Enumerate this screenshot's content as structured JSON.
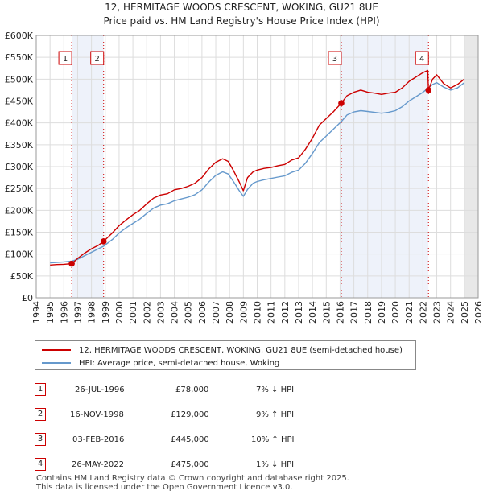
{
  "title_line1": "12, HERMITAGE WOODS CRESCENT, WOKING, GU21 8UE",
  "title_line2": "Price paid vs. HM Land Registry's House Price Index (HPI)",
  "chart_data": {
    "type": "line",
    "title": "12, HERMITAGE WOODS CRESCENT, WOKING, GU21 8UE — Price paid vs. HM Land Registry's House Price Index (HPI)",
    "xlabel": "",
    "ylabel": "",
    "xlim": [
      1994,
      2026
    ],
    "ylim": [
      0,
      600000
    ],
    "x_ticks": [
      1994,
      1995,
      1996,
      1997,
      1998,
      1999,
      2000,
      2001,
      2002,
      2003,
      2004,
      2005,
      2006,
      2007,
      2008,
      2009,
      2010,
      2011,
      2012,
      2013,
      2014,
      2015,
      2016,
      2017,
      2018,
      2019,
      2020,
      2021,
      2022,
      2023,
      2024,
      2025,
      2026
    ],
    "y_ticks": [
      0,
      50000,
      100000,
      150000,
      200000,
      250000,
      300000,
      350000,
      400000,
      450000,
      500000,
      550000,
      600000
    ],
    "y_tick_labels": [
      "£0",
      "£50K",
      "£100K",
      "£150K",
      "£200K",
      "£250K",
      "£300K",
      "£350K",
      "£400K",
      "£450K",
      "£500K",
      "£550K",
      "£600K"
    ],
    "grid": true,
    "series": [
      {
        "name": "12, HERMITAGE WOODS CRESCENT, WOKING, GU21 8UE (semi-detached house)",
        "color": "#cc0000",
        "x": [
          1995.0,
          1995.5,
          1996.0,
          1996.57,
          1997.0,
          1997.5,
          1998.0,
          1998.5,
          1998.88,
          1999.5,
          2000.0,
          2000.5,
          2001.0,
          2001.5,
          2002.0,
          2002.5,
          2003.0,
          2003.5,
          2004.0,
          2004.5,
          2005.0,
          2005.5,
          2006.0,
          2006.5,
          2007.0,
          2007.5,
          2007.9,
          2008.3,
          2008.7,
          2009.0,
          2009.3,
          2009.7,
          2010.0,
          2010.5,
          2011.0,
          2011.5,
          2012.0,
          2012.5,
          2013.0,
          2013.5,
          2014.0,
          2014.5,
          2015.0,
          2015.5,
          2016.09,
          2016.5,
          2017.0,
          2017.5,
          2018.0,
          2018.5,
          2019.0,
          2019.5,
          2020.0,
          2020.5,
          2021.0,
          2021.5,
          2022.0,
          2022.35,
          2022.4,
          2022.7,
          2023.0,
          2023.5,
          2024.0,
          2024.5,
          2025.0
        ],
        "values": [
          75000,
          76000,
          76500,
          78000,
          90000,
          102000,
          112000,
          120000,
          129000,
          148000,
          165000,
          178000,
          190000,
          200000,
          215000,
          228000,
          235000,
          238000,
          247000,
          250000,
          255000,
          262000,
          275000,
          295000,
          310000,
          318000,
          312000,
          290000,
          265000,
          245000,
          275000,
          288000,
          292000,
          296000,
          298000,
          302000,
          305000,
          315000,
          320000,
          340000,
          365000,
          395000,
          410000,
          425000,
          445000,
          462000,
          470000,
          475000,
          470000,
          468000,
          465000,
          468000,
          470000,
          480000,
          495000,
          505000,
          515000,
          520000,
          475000,
          500000,
          510000,
          490000,
          480000,
          488000,
          500000
        ]
      },
      {
        "name": "HPI: Average price, semi-detached house, Woking",
        "color": "#6699cc",
        "x": [
          1995.0,
          1995.5,
          1996.0,
          1996.57,
          1997.0,
          1997.5,
          1998.0,
          1998.5,
          1998.88,
          1999.5,
          2000.0,
          2000.5,
          2001.0,
          2001.5,
          2002.0,
          2002.5,
          2003.0,
          2003.5,
          2004.0,
          2004.5,
          2005.0,
          2005.5,
          2006.0,
          2006.5,
          2007.0,
          2007.5,
          2007.9,
          2008.3,
          2008.7,
          2009.0,
          2009.3,
          2009.7,
          2010.0,
          2010.5,
          2011.0,
          2011.5,
          2012.0,
          2012.5,
          2013.0,
          2013.5,
          2014.0,
          2014.5,
          2015.0,
          2015.5,
          2016.09,
          2016.5,
          2017.0,
          2017.5,
          2018.0,
          2018.5,
          2019.0,
          2019.5,
          2020.0,
          2020.5,
          2021.0,
          2021.5,
          2022.0,
          2022.4,
          2022.7,
          2023.0,
          2023.5,
          2024.0,
          2024.5,
          2025.0
        ],
        "values": [
          80000,
          81000,
          82000,
          84000,
          88000,
          96000,
          104000,
          112000,
          118000,
          133000,
          148000,
          160000,
          170000,
          180000,
          193000,
          205000,
          212000,
          215000,
          222000,
          226000,
          230000,
          236000,
          247000,
          265000,
          280000,
          288000,
          283000,
          265000,
          245000,
          232000,
          248000,
          262000,
          266000,
          270000,
          273000,
          276000,
          279000,
          287000,
          292000,
          308000,
          330000,
          355000,
          370000,
          385000,
          403000,
          418000,
          425000,
          428000,
          426000,
          424000,
          422000,
          424000,
          428000,
          437000,
          450000,
          460000,
          470000,
          480000,
          488000,
          492000,
          482000,
          475000,
          480000,
          492000
        ]
      }
    ],
    "transactions": [
      {
        "label": "1",
        "x": 1996.57,
        "price": 78000
      },
      {
        "label": "2",
        "x": 1998.88,
        "price": 129000
      },
      {
        "label": "3",
        "x": 2016.09,
        "price": 445000
      },
      {
        "label": "4",
        "x": 2022.4,
        "price": 475000
      }
    ],
    "shaded_ranges": [
      [
        1996.57,
        1998.88
      ],
      [
        2016.09,
        2022.4
      ],
      [
        2025.0,
        2026.0
      ]
    ]
  },
  "legend": {
    "property_label": "12, HERMITAGE WOODS CRESCENT, WOKING, GU21 8UE (semi-detached house)",
    "hpi_label": "HPI: Average price, semi-detached house, Woking",
    "property_color": "#cc0000",
    "hpi_color": "#6699cc"
  },
  "transactions_table": [
    {
      "num": "1",
      "date": "26-JUL-1996",
      "price": "£78,000",
      "hpi": "7% ↓ HPI"
    },
    {
      "num": "2",
      "date": "16-NOV-1998",
      "price": "£129,000",
      "hpi": "9% ↑ HPI"
    },
    {
      "num": "3",
      "date": "03-FEB-2016",
      "price": "£445,000",
      "hpi": "10% ↑ HPI"
    },
    {
      "num": "4",
      "date": "26-MAY-2022",
      "price": "£475,000",
      "hpi": "1% ↓ HPI"
    }
  ],
  "footer": {
    "line1": "Contains HM Land Registry data © Crown copyright and database right 2025.",
    "line2": "This data is licensed under the Open Government Licence v3.0."
  }
}
